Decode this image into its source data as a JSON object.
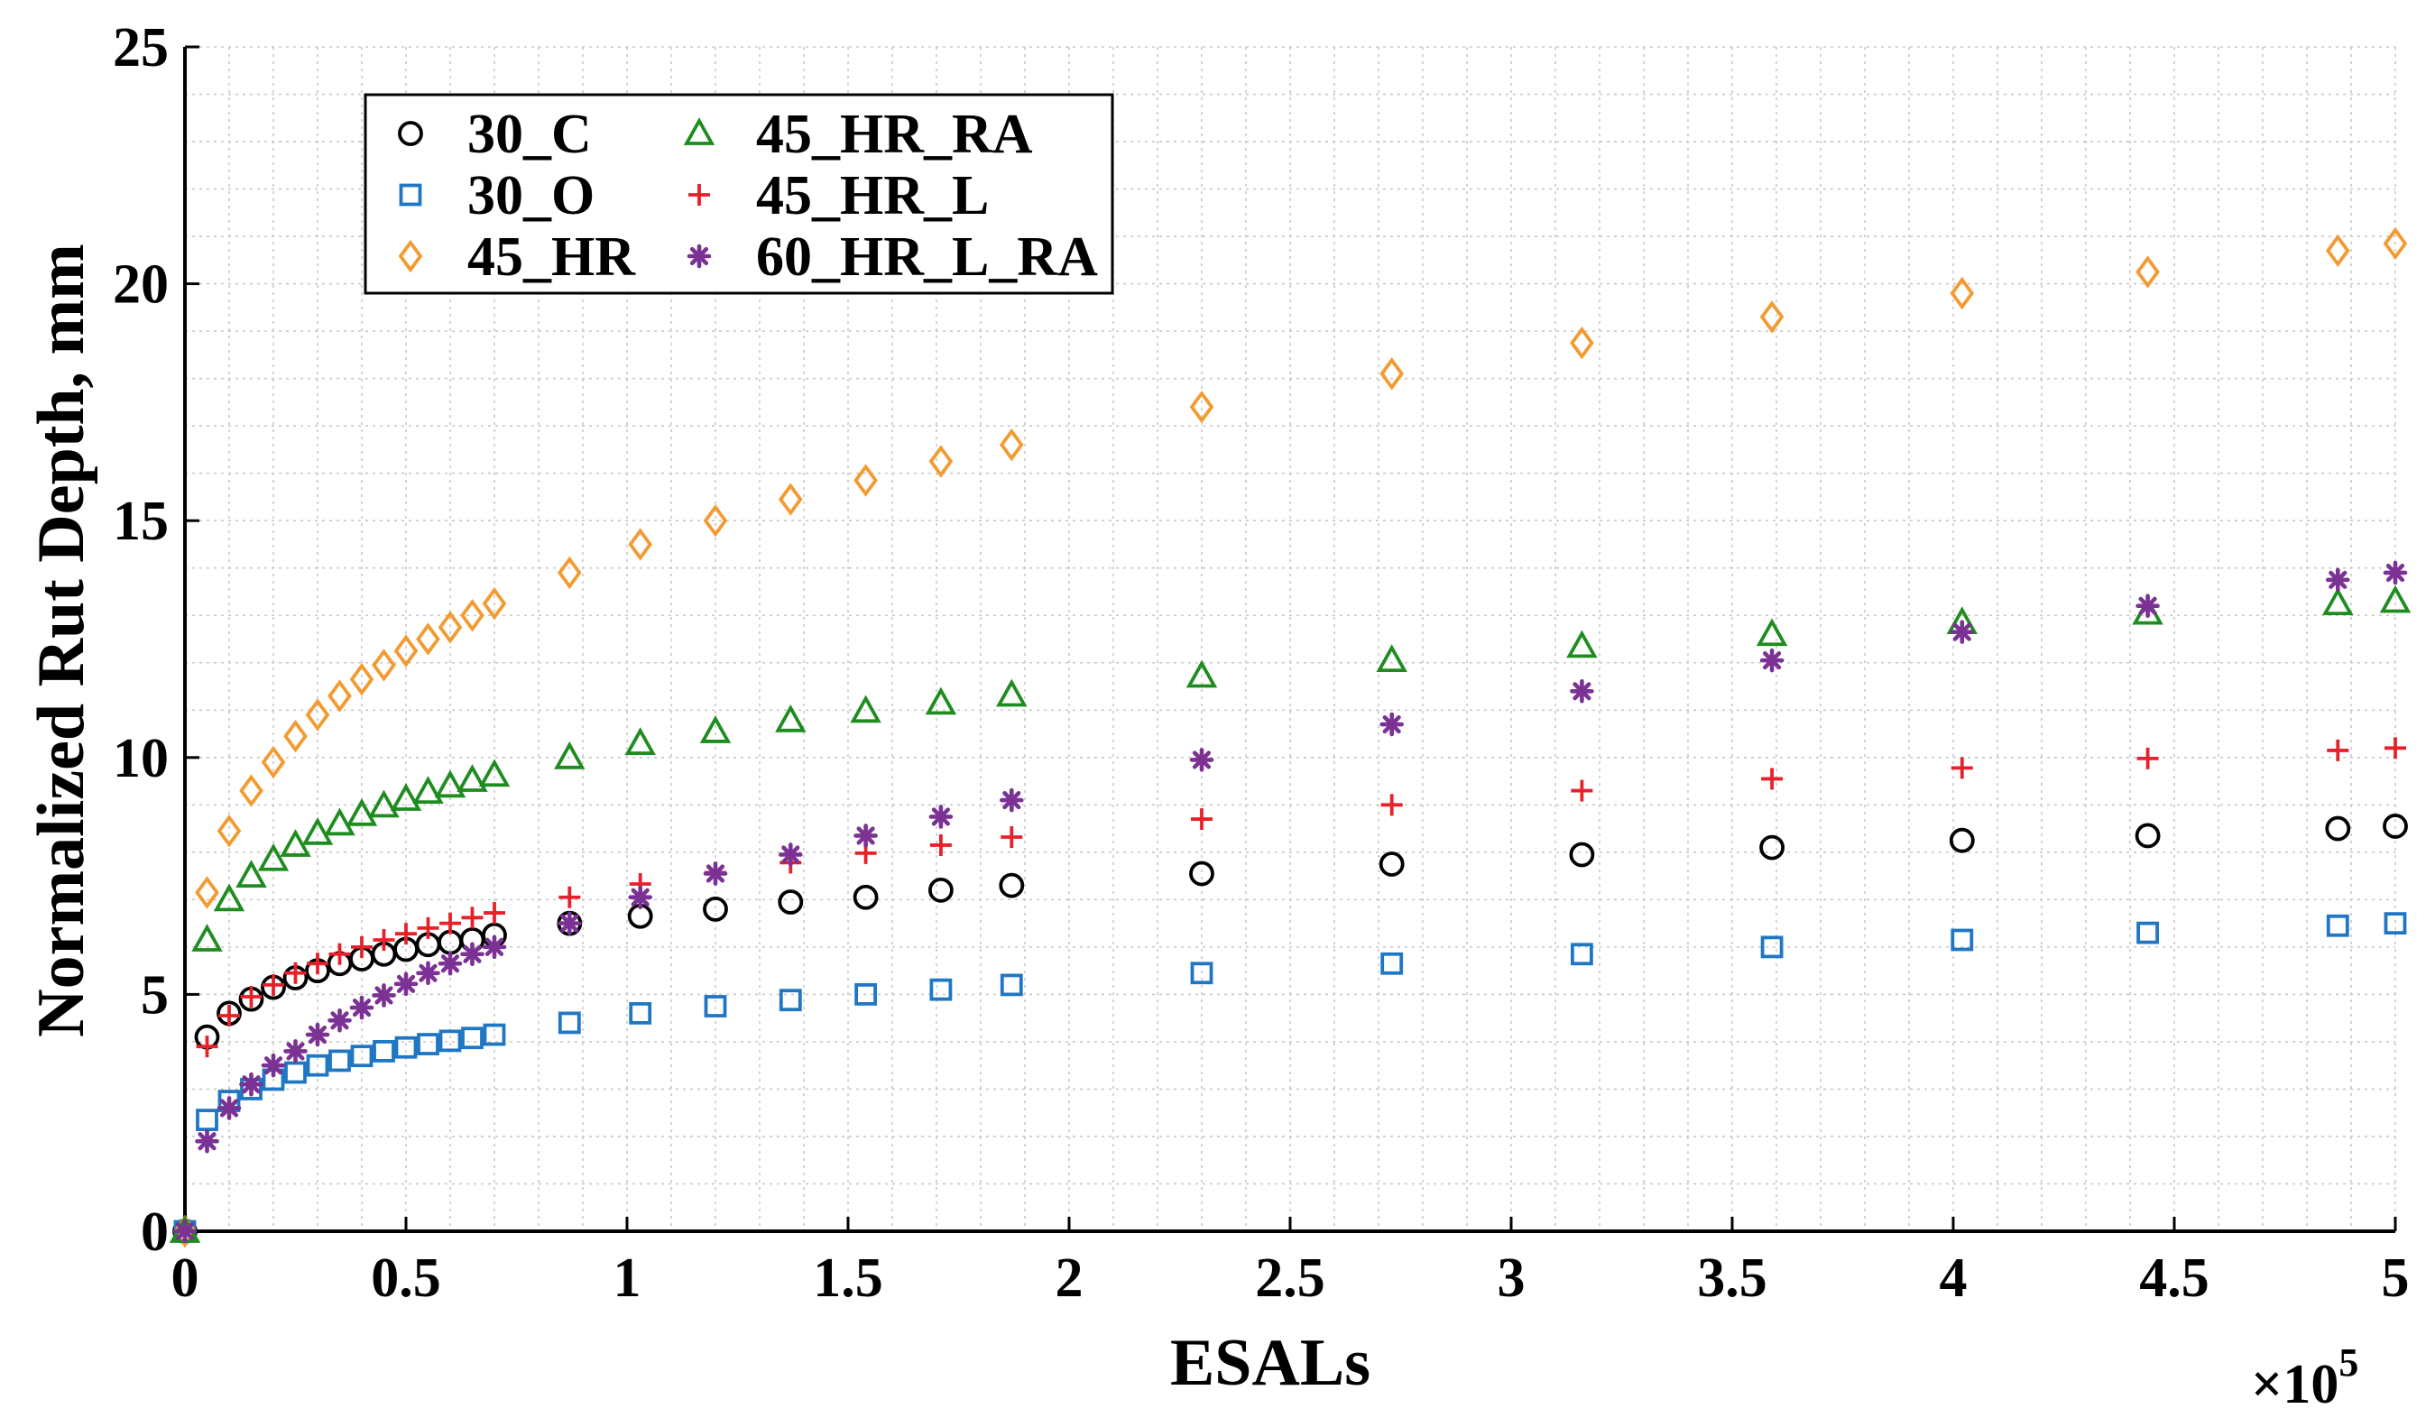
{
  "chart_data": {
    "type": "scatter",
    "title": "",
    "xlabel": "ESALs",
    "ylabel": "Normalized Rut Depth, mm",
    "x_multiplier_prefix": "×10",
    "x_multiplier_exp": "5",
    "xlim": [
      0,
      5
    ],
    "ylim": [
      0,
      25
    ],
    "xticks": [
      0,
      0.5,
      1,
      1.5,
      2,
      2.5,
      3,
      3.5,
      4,
      4.5,
      5
    ],
    "xtick_labels": [
      "0",
      "0.5",
      "1",
      "1.5",
      "2",
      "2.5",
      "3",
      "3.5",
      "4",
      "4.5",
      "5"
    ],
    "yticks": [
      0,
      5,
      10,
      15,
      20,
      25
    ],
    "ytick_labels": [
      "0",
      "5",
      "10",
      "15",
      "20",
      "25"
    ],
    "grid": true,
    "legend_position": "top-left",
    "x": [
      0,
      0.05,
      0.1,
      0.15,
      0.2,
      0.25,
      0.3,
      0.35,
      0.4,
      0.45,
      0.5,
      0.55,
      0.6,
      0.65,
      0.7,
      0.87,
      1.03,
      1.2,
      1.37,
      1.54,
      1.71,
      1.87,
      2.3,
      2.73,
      3.16,
      3.59,
      4.02,
      4.44,
      4.87,
      5.0
    ],
    "series": [
      {
        "name": "30_C",
        "marker": "circle",
        "color": "#000000",
        "values": [
          0,
          4.1,
          4.6,
          4.9,
          5.15,
          5.35,
          5.5,
          5.65,
          5.75,
          5.85,
          5.95,
          6.05,
          6.1,
          6.15,
          6.25,
          6.5,
          6.65,
          6.8,
          6.95,
          7.05,
          7.2,
          7.3,
          7.55,
          7.75,
          7.95,
          8.1,
          8.25,
          8.35,
          8.5,
          8.55
        ]
      },
      {
        "name": "30_O",
        "marker": "square",
        "color": "#1f77c4",
        "values": [
          0,
          2.35,
          2.75,
          3.0,
          3.2,
          3.35,
          3.5,
          3.6,
          3.7,
          3.8,
          3.88,
          3.95,
          4.02,
          4.08,
          4.15,
          4.4,
          4.6,
          4.75,
          4.88,
          5.0,
          5.1,
          5.2,
          5.45,
          5.65,
          5.85,
          6.0,
          6.15,
          6.3,
          6.45,
          6.5
        ]
      },
      {
        "name": "45_HR",
        "marker": "diamond",
        "color": "#f39a30",
        "values": [
          0,
          7.15,
          8.45,
          9.3,
          9.9,
          10.45,
          10.9,
          11.3,
          11.65,
          11.95,
          12.25,
          12.5,
          12.75,
          13.0,
          13.25,
          13.9,
          14.5,
          15.0,
          15.45,
          15.85,
          16.25,
          16.6,
          17.4,
          18.1,
          18.75,
          19.3,
          19.8,
          20.25,
          20.7,
          20.85
        ]
      },
      {
        "name": "45_HR_RA",
        "marker": "triangle",
        "color": "#1e8c1e",
        "values": [
          0,
          6.15,
          7.0,
          7.5,
          7.85,
          8.15,
          8.4,
          8.6,
          8.8,
          8.98,
          9.12,
          9.27,
          9.4,
          9.52,
          9.63,
          10.0,
          10.3,
          10.55,
          10.78,
          10.98,
          11.15,
          11.32,
          11.72,
          12.05,
          12.35,
          12.6,
          12.85,
          13.05,
          13.25,
          13.3
        ]
      },
      {
        "name": "45_HR_L",
        "marker": "plus",
        "color": "#e8202a",
        "values": [
          0,
          3.9,
          4.55,
          4.95,
          5.2,
          5.45,
          5.65,
          5.85,
          6.0,
          6.15,
          6.28,
          6.4,
          6.5,
          6.62,
          6.72,
          7.05,
          7.33,
          7.57,
          7.78,
          7.98,
          8.15,
          8.32,
          8.7,
          9.0,
          9.3,
          9.55,
          9.78,
          9.98,
          10.15,
          10.2
        ]
      },
      {
        "name": "60_HR_L_RA",
        "marker": "star",
        "color": "#7b3294",
        "values": [
          0,
          1.9,
          2.6,
          3.1,
          3.5,
          3.8,
          4.15,
          4.45,
          4.72,
          4.98,
          5.22,
          5.45,
          5.65,
          5.85,
          6.0,
          6.5,
          7.05,
          7.55,
          7.95,
          8.35,
          8.75,
          9.1,
          9.95,
          10.7,
          11.4,
          12.05,
          12.65,
          13.2,
          13.75,
          13.9
        ]
      }
    ]
  }
}
